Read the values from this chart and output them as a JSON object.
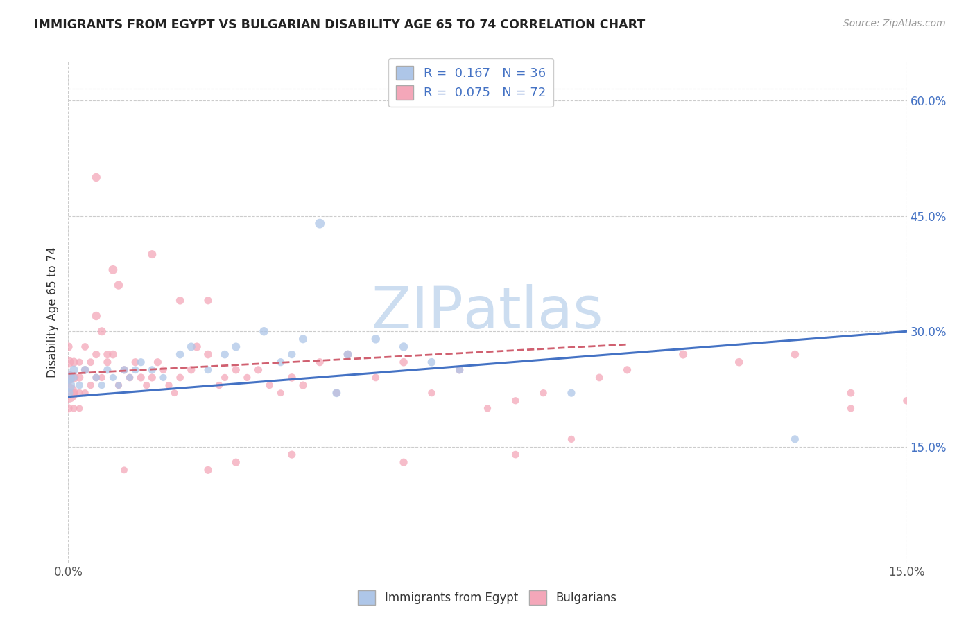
{
  "title": "IMMIGRANTS FROM EGYPT VS BULGARIAN DISABILITY AGE 65 TO 74 CORRELATION CHART",
  "source_text": "Source: ZipAtlas.com",
  "ylabel": "Disability Age 65 to 74",
  "legend_label1": "Immigrants from Egypt",
  "legend_label2": "Bulgarians",
  "R1": 0.167,
  "N1": 36,
  "R2": 0.075,
  "N2": 72,
  "xlim": [
    0.0,
    0.15
  ],
  "ylim": [
    0.0,
    0.65
  ],
  "yticks": [
    0.15,
    0.3,
    0.45,
    0.6
  ],
  "ytick_labels": [
    "15.0%",
    "30.0%",
    "45.0%",
    "60.0%"
  ],
  "color1": "#aec6e8",
  "color2": "#f4a7b9",
  "line_color1": "#4472c4",
  "line_color2": "#d06070",
  "watermark_color": "#ccddf0",
  "egypt_x": [
    0.0,
    0.0,
    0.0,
    0.001,
    0.001,
    0.002,
    0.003,
    0.005,
    0.006,
    0.007,
    0.008,
    0.009,
    0.01,
    0.011,
    0.012,
    0.013,
    0.015,
    0.017,
    0.02,
    0.022,
    0.025,
    0.028,
    0.03,
    0.035,
    0.038,
    0.04,
    0.042,
    0.045,
    0.048,
    0.05,
    0.055,
    0.06,
    0.065,
    0.07,
    0.09,
    0.13
  ],
  "egypt_y": [
    0.23,
    0.24,
    0.22,
    0.25,
    0.24,
    0.23,
    0.25,
    0.24,
    0.23,
    0.25,
    0.24,
    0.23,
    0.25,
    0.24,
    0.25,
    0.26,
    0.25,
    0.24,
    0.27,
    0.28,
    0.25,
    0.27,
    0.28,
    0.3,
    0.26,
    0.27,
    0.29,
    0.44,
    0.22,
    0.27,
    0.29,
    0.28,
    0.26,
    0.25,
    0.22,
    0.16
  ],
  "egypt_sizes": [
    200,
    160,
    100,
    80,
    60,
    60,
    70,
    60,
    55,
    65,
    55,
    50,
    65,
    55,
    60,
    65,
    65,
    55,
    70,
    75,
    60,
    70,
    75,
    80,
    65,
    65,
    75,
    100,
    75,
    75,
    80,
    80,
    70,
    65,
    65,
    65
  ],
  "bulg_x": [
    0.0,
    0.0,
    0.0,
    0.0,
    0.0,
    0.001,
    0.001,
    0.001,
    0.001,
    0.002,
    0.002,
    0.002,
    0.002,
    0.003,
    0.003,
    0.003,
    0.004,
    0.004,
    0.005,
    0.005,
    0.005,
    0.006,
    0.006,
    0.007,
    0.007,
    0.008,
    0.008,
    0.009,
    0.009,
    0.01,
    0.01,
    0.011,
    0.012,
    0.013,
    0.014,
    0.015,
    0.016,
    0.017,
    0.018,
    0.019,
    0.02,
    0.022,
    0.023,
    0.025,
    0.027,
    0.028,
    0.03,
    0.032,
    0.034,
    0.036,
    0.038,
    0.04,
    0.042,
    0.045,
    0.048,
    0.05,
    0.055,
    0.06,
    0.065,
    0.07,
    0.075,
    0.08,
    0.085,
    0.09,
    0.095,
    0.1,
    0.11,
    0.12,
    0.13,
    0.14,
    0.14,
    0.15
  ],
  "bulg_y": [
    0.22,
    0.24,
    0.26,
    0.28,
    0.2,
    0.24,
    0.26,
    0.22,
    0.2,
    0.24,
    0.22,
    0.26,
    0.2,
    0.25,
    0.22,
    0.28,
    0.23,
    0.26,
    0.24,
    0.27,
    0.32,
    0.24,
    0.3,
    0.26,
    0.27,
    0.27,
    0.38,
    0.23,
    0.36,
    0.25,
    0.12,
    0.24,
    0.26,
    0.24,
    0.23,
    0.24,
    0.26,
    0.25,
    0.23,
    0.22,
    0.24,
    0.25,
    0.28,
    0.27,
    0.23,
    0.24,
    0.25,
    0.24,
    0.25,
    0.23,
    0.22,
    0.24,
    0.23,
    0.26,
    0.22,
    0.27,
    0.24,
    0.26,
    0.22,
    0.25,
    0.2,
    0.21,
    0.22,
    0.16,
    0.24,
    0.25,
    0.27,
    0.26,
    0.27,
    0.22,
    0.2,
    0.21
  ],
  "bulg_sizes": [
    400,
    200,
    130,
    80,
    80,
    100,
    80,
    60,
    55,
    70,
    60,
    55,
    50,
    65,
    55,
    60,
    55,
    60,
    60,
    65,
    80,
    55,
    75,
    65,
    65,
    70,
    85,
    55,
    80,
    65,
    50,
    60,
    65,
    65,
    55,
    65,
    65,
    55,
    55,
    50,
    60,
    65,
    75,
    70,
    55,
    55,
    65,
    55,
    65,
    55,
    50,
    70,
    65,
    65,
    60,
    70,
    60,
    70,
    55,
    65,
    55,
    55,
    55,
    55,
    60,
    65,
    75,
    70,
    70,
    60,
    55,
    60
  ],
  "bulg_outlier_x": [
    0.005,
    0.015,
    0.02,
    0.025,
    0.025,
    0.03,
    0.04,
    0.06,
    0.08
  ],
  "bulg_outlier_y": [
    0.5,
    0.4,
    0.34,
    0.34,
    0.12,
    0.13,
    0.14,
    0.13,
    0.14
  ],
  "bulg_outlier_sizes": [
    80,
    75,
    70,
    65,
    65,
    65,
    65,
    65,
    60
  ]
}
